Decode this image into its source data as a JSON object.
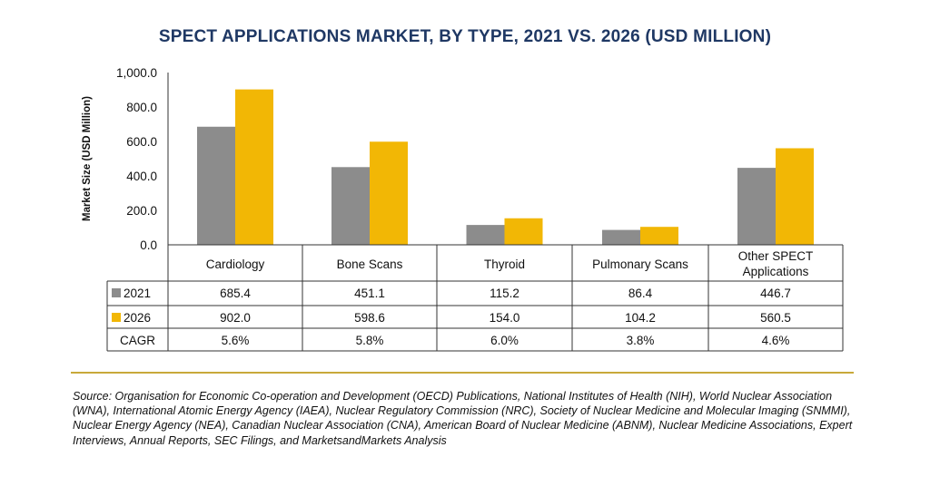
{
  "chart_data": {
    "type": "bar",
    "title": "SPECT APPLICATIONS MARKET, BY TYPE, 2021 VS. 2026 (USD MILLION)",
    "ylabel": "Market Size (USD Million)",
    "xlabel": "",
    "ylim": [
      0,
      1000
    ],
    "yticks": [
      "0.0",
      "200.0",
      "400.0",
      "600.0",
      "800.0",
      "1,000.0"
    ],
    "categories": [
      "Cardiology",
      "Bone Scans",
      "Thyroid",
      "Pulmonary Scans",
      "Other SPECT Applications"
    ],
    "series": [
      {
        "name": "2021",
        "color": "#8c8c8c",
        "values": [
          685.4,
          451.1,
          115.2,
          86.4,
          446.7
        ],
        "labels": [
          "685.4",
          "451.1",
          "115.2",
          "86.4",
          "446.7"
        ]
      },
      {
        "name": "2026",
        "color": "#f2b705",
        "values": [
          902.0,
          598.6,
          154.0,
          104.2,
          560.5
        ],
        "labels": [
          "902.0",
          "598.6",
          "154.0",
          "104.2",
          "560.5"
        ]
      }
    ],
    "cagr": {
      "label": "CAGR",
      "values": [
        "5.6%",
        "5.8%",
        "6.0%",
        "3.8%",
        "4.6%"
      ]
    },
    "grid": false,
    "legend": "data-table"
  },
  "source": "Source: Organisation for Economic Co-operation and Development (OECD) Publications, National Institutes of Health (NIH), World Nuclear Association (WNA), International Atomic Energy Agency (IAEA), Nuclear Regulatory Commission (NRC), Society of Nuclear Medicine and Molecular Imaging (SNMMI), Nuclear Energy Agency (NEA), Canadian Nuclear Association (CNA), American Board of Nuclear Medicine (ABNM), Nuclear Medicine Associations, Expert Interviews, Annual Reports, SEC Filings, and MarketsandMarkets Analysis",
  "colors": {
    "title": "#1f3864",
    "divider": "#c8a93a"
  }
}
